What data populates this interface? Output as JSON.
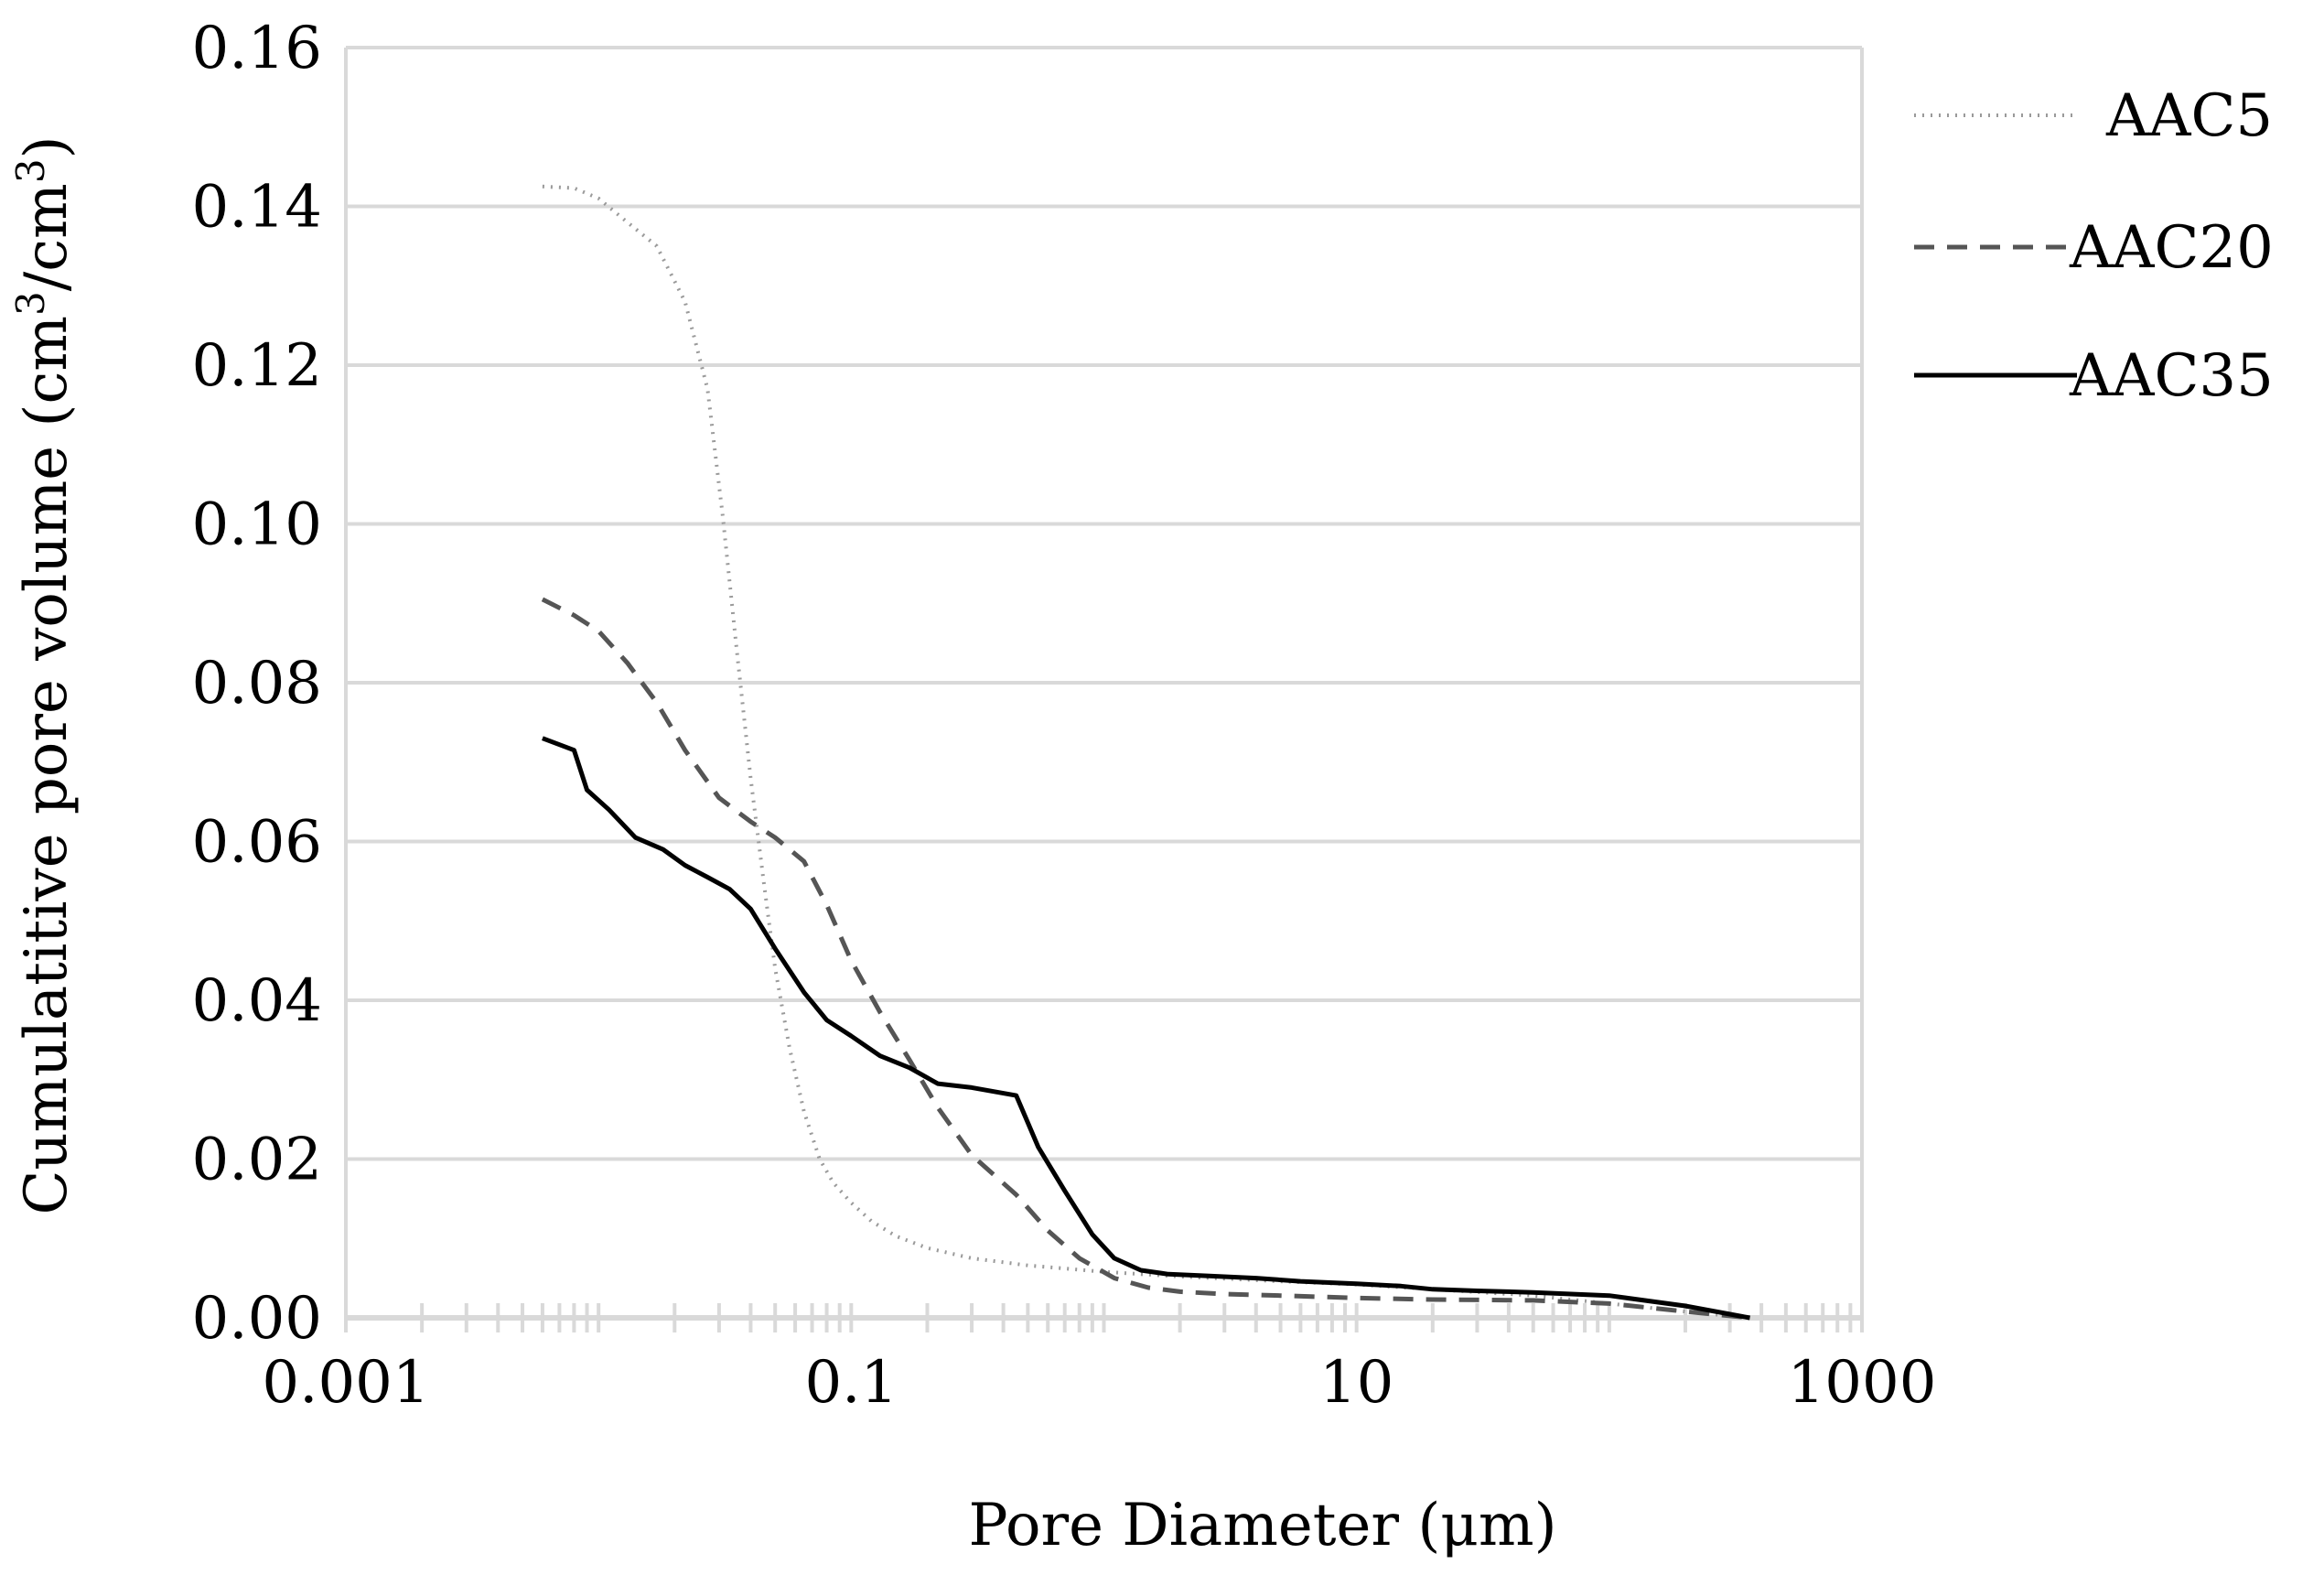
{
  "chart_data": {
    "type": "line",
    "title": "",
    "xlabel": "Pore Diameter  (μm)",
    "ylabel_main": "Cumulatitive pore volume (cm",
    "ylabel_sup1": "3",
    "ylabel_mid": "/cm",
    "ylabel_sup2": "3",
    "ylabel_end": ")",
    "xscale": "log",
    "xlim": [
      0.001,
      1000
    ],
    "ylim": [
      0,
      0.16
    ],
    "xticks": [
      {
        "value": 0.001,
        "label": "0.001"
      },
      {
        "value": 0.1,
        "label": "0.1"
      },
      {
        "value": 10,
        "label": "10"
      },
      {
        "value": 1000,
        "label": "1000"
      }
    ],
    "yticks": [
      {
        "value": 0,
        "label": "0.00"
      },
      {
        "value": 0.02,
        "label": "0.02"
      },
      {
        "value": 0.04,
        "label": "0.04"
      },
      {
        "value": 0.06,
        "label": "0.06"
      },
      {
        "value": 0.08,
        "label": "0.08"
      },
      {
        "value": 0.1,
        "label": "0.10"
      },
      {
        "value": 0.12,
        "label": "0.12"
      },
      {
        "value": 0.14,
        "label": "0.14"
      },
      {
        "value": 0.16,
        "label": "0.16"
      }
    ],
    "grid": "horizontal",
    "legend_position": "right",
    "colors": {
      "grid": "#d9d9d9",
      "text": "#000000",
      "aac5": "#9a9a9a",
      "aac20": "#555555",
      "aac35": "#000000"
    },
    "series": [
      {
        "name": "AAC5",
        "style": "dotted",
        "x": [
          0.006,
          0.008,
          0.01,
          0.013,
          0.017,
          0.022,
          0.027,
          0.031,
          0.035,
          0.04,
          0.045,
          0.05,
          0.057,
          0.065,
          0.075,
          0.085,
          0.1,
          0.12,
          0.15,
          0.2,
          0.3,
          0.5,
          1,
          2,
          5,
          10,
          20,
          50,
          100,
          200,
          360
        ],
        "y": [
          0.1425,
          0.1423,
          0.141,
          0.138,
          0.135,
          0.128,
          0.117,
          0.101,
          0.085,
          0.068,
          0.055,
          0.044,
          0.034,
          0.026,
          0.02,
          0.017,
          0.0145,
          0.0122,
          0.0103,
          0.0088,
          0.0075,
          0.0066,
          0.0058,
          0.0052,
          0.0046,
          0.0042,
          0.0036,
          0.0028,
          0.0018,
          0.0008,
          0.0
        ]
      },
      {
        "name": "AAC20",
        "style": "dashed",
        "x": [
          0.006,
          0.008,
          0.01,
          0.013,
          0.017,
          0.022,
          0.03,
          0.04,
          0.05,
          0.065,
          0.08,
          0.1,
          0.13,
          0.17,
          0.22,
          0.3,
          0.45,
          0.6,
          0.8,
          1.1,
          1.5,
          2,
          3,
          5,
          10,
          20,
          50,
          100,
          200,
          360
        ],
        "y": [
          0.0905,
          0.0885,
          0.0865,
          0.0825,
          0.0775,
          0.0715,
          0.0655,
          0.0625,
          0.0605,
          0.0575,
          0.052,
          0.045,
          0.0385,
          0.0325,
          0.0265,
          0.0205,
          0.0155,
          0.011,
          0.0075,
          0.005,
          0.0038,
          0.0033,
          0.003,
          0.0028,
          0.0025,
          0.0023,
          0.0022,
          0.0018,
          0.0008,
          0.0
        ]
      },
      {
        "name": "AAC35",
        "style": "solid",
        "x": [
          0.006,
          0.008,
          0.009,
          0.011,
          0.014,
          0.018,
          0.022,
          0.027,
          0.033,
          0.04,
          0.05,
          0.065,
          0.08,
          0.1,
          0.13,
          0.17,
          0.22,
          0.3,
          0.45,
          0.55,
          0.7,
          0.9,
          1.1,
          1.4,
          1.8,
          2.5,
          4,
          6,
          10,
          15,
          20,
          30,
          50,
          100,
          200,
          360
        ],
        "y": [
          0.073,
          0.0715,
          0.0665,
          0.064,
          0.0605,
          0.059,
          0.057,
          0.0555,
          0.054,
          0.0515,
          0.0465,
          0.041,
          0.0375,
          0.0355,
          0.033,
          0.0315,
          0.0295,
          0.029,
          0.028,
          0.0215,
          0.016,
          0.0105,
          0.0075,
          0.006,
          0.0055,
          0.0053,
          0.005,
          0.0046,
          0.0043,
          0.004,
          0.0036,
          0.0034,
          0.0032,
          0.0028,
          0.0015,
          0.0
        ]
      }
    ]
  }
}
